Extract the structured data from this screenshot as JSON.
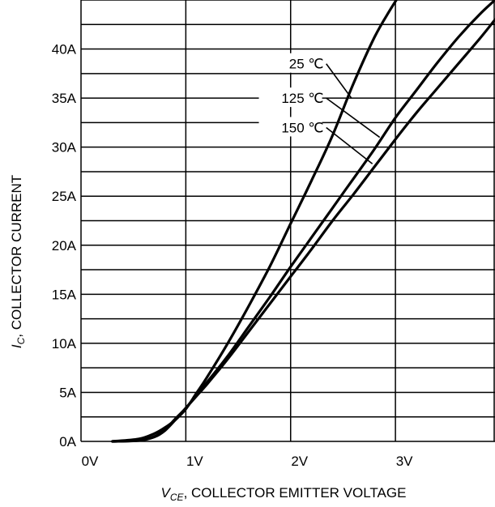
{
  "chart_data": {
    "type": "line",
    "xlabel": {
      "symbol": "V",
      "subscript": "CE",
      "text": ", COLLECTOR EMITTER VOLTAGE"
    },
    "ylabel": {
      "symbol": "I",
      "subscript": "C",
      "text": ", COLLECTOR CURRENT"
    },
    "x_ticks": [
      {
        "value": 0,
        "label": "0V"
      },
      {
        "value": 1,
        "label": "1V"
      },
      {
        "value": 2,
        "label": "2V"
      },
      {
        "value": 3,
        "label": "3V"
      }
    ],
    "y_ticks": [
      {
        "value": 0,
        "label": "0A"
      },
      {
        "value": 5,
        "label": "5A"
      },
      {
        "value": 10,
        "label": "10A"
      },
      {
        "value": 15,
        "label": "15A"
      },
      {
        "value": 20,
        "label": "20A"
      },
      {
        "value": 25,
        "label": "25A"
      },
      {
        "value": 30,
        "label": "30A"
      },
      {
        "value": 35,
        "label": "35A"
      },
      {
        "value": 40,
        "label": "40A"
      }
    ],
    "xlim": [
      0,
      3.95
    ],
    "ylim": [
      0,
      45
    ],
    "grid": {
      "x_step": 1,
      "y_step": 2.5
    },
    "series": [
      {
        "name": "25 ℃",
        "points": [
          [
            0.3,
            0
          ],
          [
            0.55,
            0.25
          ],
          [
            0.7,
            0.8
          ],
          [
            0.8,
            1.4
          ],
          [
            0.9,
            2.2
          ],
          [
            1.0,
            3.3
          ],
          [
            1.1,
            4.9
          ],
          [
            1.2,
            6.5
          ],
          [
            1.4,
            10
          ],
          [
            1.6,
            13.8
          ],
          [
            1.8,
            17.8
          ],
          [
            2.0,
            22.2
          ],
          [
            2.2,
            26.6
          ],
          [
            2.4,
            31.2
          ],
          [
            2.6,
            36.5
          ],
          [
            2.8,
            41.2
          ],
          [
            2.95,
            44.0
          ],
          [
            3.1,
            46.5
          ]
        ]
      },
      {
        "name": "125 ℃",
        "points": [
          [
            0.3,
            0
          ],
          [
            0.55,
            0.1
          ],
          [
            0.7,
            0.5
          ],
          [
            0.8,
            1.2
          ],
          [
            0.9,
            2.3
          ],
          [
            1.0,
            3.4
          ],
          [
            1.1,
            4.7
          ],
          [
            1.2,
            6.0
          ],
          [
            1.4,
            8.7
          ],
          [
            1.6,
            11.7
          ],
          [
            1.8,
            14.7
          ],
          [
            2.0,
            17.8
          ],
          [
            2.2,
            20.8
          ],
          [
            2.4,
            23.8
          ],
          [
            2.6,
            26.8
          ],
          [
            2.8,
            29.8
          ],
          [
            3.0,
            33.0
          ],
          [
            3.2,
            35.8
          ],
          [
            3.4,
            38.6
          ],
          [
            3.6,
            41.2
          ],
          [
            3.8,
            43.5
          ],
          [
            3.95,
            45.0
          ]
        ]
      },
      {
        "name": "150 ℃",
        "points": [
          [
            0.3,
            0
          ],
          [
            0.55,
            0.08
          ],
          [
            0.7,
            0.45
          ],
          [
            0.8,
            1.1
          ],
          [
            0.9,
            2.2
          ],
          [
            1.0,
            3.4
          ],
          [
            1.1,
            4.6
          ],
          [
            1.2,
            5.8
          ],
          [
            1.4,
            8.4
          ],
          [
            1.6,
            11.2
          ],
          [
            1.8,
            14.0
          ],
          [
            2.0,
            16.8
          ],
          [
            2.2,
            19.6
          ],
          [
            2.4,
            22.5
          ],
          [
            2.6,
            25.2
          ],
          [
            2.8,
            28.0
          ],
          [
            3.0,
            30.8
          ],
          [
            3.2,
            33.5
          ],
          [
            3.4,
            36.0
          ],
          [
            3.6,
            38.5
          ],
          [
            3.8,
            41.0
          ],
          [
            3.95,
            43.0
          ]
        ]
      }
    ],
    "labels": [
      {
        "text": "25 ℃",
        "text_x": 2.3,
        "text_y": 38.5,
        "leader": [
          [
            2.34,
            38.5
          ],
          [
            2.58,
            35.0
          ]
        ]
      },
      {
        "text": "125 ℃",
        "text_x": 2.3,
        "text_y": 35.0,
        "leader": [
          [
            2.34,
            35.0
          ],
          [
            2.85,
            31.0
          ]
        ]
      },
      {
        "text": "150 ℃",
        "text_x": 2.3,
        "text_y": 32.0,
        "leader": [
          [
            2.34,
            32.0
          ],
          [
            2.78,
            28.3
          ]
        ]
      }
    ]
  }
}
